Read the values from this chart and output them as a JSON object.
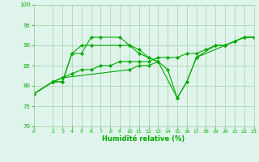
{
  "bg_color": "#dff5eb",
  "line_color": "#00aa00",
  "grid_color": "#aaccaa",
  "xlabel": "Humidité relative (%)",
  "xlabel_color": "#00aa00",
  "tick_color": "#00aa00",
  "ylim": [
    70,
    100
  ],
  "xlim": [
    0,
    23
  ],
  "yticks": [
    70,
    75,
    80,
    85,
    90,
    95,
    100
  ],
  "xticks": [
    0,
    2,
    3,
    4,
    5,
    6,
    7,
    8,
    9,
    10,
    11,
    12,
    13,
    14,
    15,
    16,
    17,
    18,
    19,
    20,
    21,
    22,
    23
  ],
  "line1_x": [
    0,
    2,
    3,
    4,
    5,
    6,
    7,
    9,
    10,
    11,
    12,
    13,
    15,
    16,
    17,
    20,
    21,
    22,
    23
  ],
  "line1_y": [
    78,
    81,
    81,
    88,
    88,
    92,
    92,
    92,
    90,
    89,
    87,
    86,
    77,
    81,
    87,
    90,
    91,
    92,
    92
  ],
  "line2_x": [
    0,
    2,
    3,
    4,
    5,
    6,
    9,
    10,
    11,
    12,
    13,
    14,
    15,
    16,
    17,
    19,
    20,
    21,
    22,
    23
  ],
  "line2_y": [
    78,
    81,
    81,
    88,
    90,
    90,
    90,
    90,
    88,
    87,
    86,
    84,
    77,
    81,
    87,
    90,
    90,
    91,
    92,
    92
  ],
  "line3_x": [
    0,
    2,
    3,
    10,
    11,
    12,
    13
  ],
  "line3_y": [
    78,
    81,
    82,
    84,
    85,
    85,
    86
  ],
  "line4_x": [
    0,
    2,
    3,
    4,
    5,
    6,
    7,
    8,
    9,
    10,
    11,
    12,
    13,
    14,
    15,
    16,
    17,
    18,
    19,
    20,
    21,
    22,
    23
  ],
  "line4_y": [
    78,
    81,
    82,
    83,
    84,
    84,
    85,
    85,
    86,
    86,
    86,
    86,
    87,
    87,
    87,
    88,
    88,
    89,
    90,
    90,
    91,
    92,
    92
  ],
  "lw": 0.8,
  "ms": 2.2
}
